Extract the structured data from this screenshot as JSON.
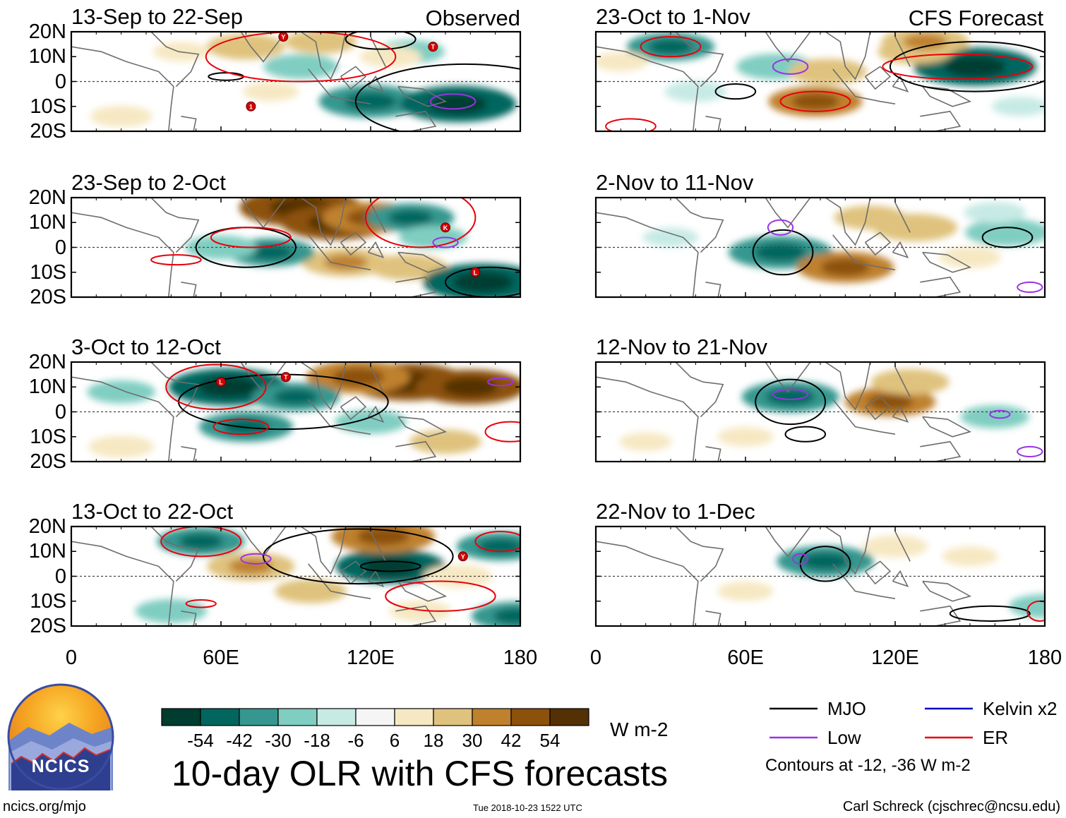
{
  "chart_data": {
    "type": "heatmap",
    "title": "10-day OLR with CFS forecasts",
    "variable": "OLR anomaly",
    "units": "W m-2",
    "columns": [
      {
        "label": "Observed"
      },
      {
        "label": "CFS Forecast"
      }
    ],
    "xlim": [
      0,
      180
    ],
    "ylim": [
      -20,
      20
    ],
    "x_ticks": [
      {
        "value": 0,
        "label": "0"
      },
      {
        "value": 60,
        "label": "60E"
      },
      {
        "value": 120,
        "label": "120E"
      },
      {
        "value": 180,
        "label": "180"
      }
    ],
    "y_ticks": [
      {
        "value": 20,
        "label": "20N"
      },
      {
        "value": 10,
        "label": "10N"
      },
      {
        "value": 0,
        "label": "0"
      },
      {
        "value": -10,
        "label": "10S"
      },
      {
        "value": -20,
        "label": "20S"
      }
    ],
    "panels": [
      {
        "column": 0,
        "row": 0,
        "period": "13-Sep to 22-Sep",
        "tag": "Observed",
        "anomalies": [
          {
            "lon": 120,
            "lat": -8,
            "value": -40
          },
          {
            "lon": 155,
            "lat": -9,
            "value": -48
          },
          {
            "lon": 92,
            "lat": 6,
            "value": -22
          },
          {
            "lon": 136,
            "lat": 12,
            "value": -18
          },
          {
            "lon": 70,
            "lat": 14,
            "value": 24
          },
          {
            "lon": 100,
            "lat": 16,
            "value": 20
          },
          {
            "lon": 128,
            "lat": 10,
            "value": 14
          },
          {
            "lon": 80,
            "lat": -4,
            "value": 10
          },
          {
            "lon": 20,
            "lat": -14,
            "value": 14
          },
          {
            "lon": 44,
            "lat": 12,
            "value": 10
          }
        ],
        "contours": [
          {
            "type": "MJO",
            "lon": 158,
            "lat": -8,
            "w": 44,
            "h": 15
          },
          {
            "type": "MJO",
            "lon": 124,
            "lat": 17,
            "w": 14,
            "h": 4
          },
          {
            "type": "MJO",
            "lon": 62,
            "lat": 2,
            "w": 7,
            "h": 1.5
          },
          {
            "type": "ER",
            "lon": 92,
            "lat": 10,
            "w": 38,
            "h": 10
          },
          {
            "type": "Low",
            "lon": 153,
            "lat": -8,
            "w": 9,
            "h": 3
          }
        ],
        "storms": [
          {
            "label": "Y",
            "lon": 85,
            "lat": 18
          },
          {
            "label": "T",
            "lon": 145,
            "lat": 14
          },
          {
            "label": "1",
            "lon": 72,
            "lat": -10
          }
        ]
      },
      {
        "column": 0,
        "row": 1,
        "period": "23-Sep to 2-Oct",
        "tag": "",
        "anomalies": [
          {
            "lon": 92,
            "lat": 16,
            "value": 52
          },
          {
            "lon": 106,
            "lat": 10,
            "value": 44
          },
          {
            "lon": 120,
            "lat": 12,
            "value": 36
          },
          {
            "lon": 110,
            "lat": -6,
            "value": 30
          },
          {
            "lon": 135,
            "lat": -8,
            "value": 24
          },
          {
            "lon": 165,
            "lat": -14,
            "value": -50
          },
          {
            "lon": 136,
            "lat": 12,
            "value": -30
          },
          {
            "lon": 80,
            "lat": -2,
            "value": -30
          },
          {
            "lon": 60,
            "lat": 0,
            "value": -20
          },
          {
            "lon": 145,
            "lat": 4,
            "value": -18
          }
        ],
        "contours": [
          {
            "type": "MJO",
            "lon": 70,
            "lat": 0,
            "w": 20,
            "h": 8
          },
          {
            "type": "MJO",
            "lon": 168,
            "lat": -14,
            "w": 18,
            "h": 6
          },
          {
            "type": "ER",
            "lon": 140,
            "lat": 12,
            "w": 22,
            "h": 12
          },
          {
            "type": "ER",
            "lon": 72,
            "lat": 4,
            "w": 16,
            "h": 4
          },
          {
            "type": "ER",
            "lon": 42,
            "lat": -5,
            "w": 10,
            "h": 2
          },
          {
            "type": "Low",
            "lon": 150,
            "lat": 2,
            "w": 5,
            "h": 2
          }
        ],
        "storms": [
          {
            "label": "K",
            "lon": 150,
            "lat": 8
          },
          {
            "label": "L",
            "lon": 162,
            "lat": -10
          }
        ]
      },
      {
        "column": 0,
        "row": 2,
        "period": "3-Oct to 12-Oct",
        "tag": "",
        "anomalies": [
          {
            "lon": 135,
            "lat": 12,
            "value": 50
          },
          {
            "lon": 160,
            "lat": 10,
            "value": 44
          },
          {
            "lon": 115,
            "lat": 14,
            "value": 40
          },
          {
            "lon": 63,
            "lat": 10,
            "value": -50
          },
          {
            "lon": 90,
            "lat": 6,
            "value": -30
          },
          {
            "lon": 70,
            "lat": -6,
            "value": -34
          },
          {
            "lon": 20,
            "lat": 8,
            "value": -18
          },
          {
            "lon": 150,
            "lat": -12,
            "value": 20
          },
          {
            "lon": 20,
            "lat": -14,
            "value": 16
          },
          {
            "lon": 120,
            "lat": -4,
            "value": -20
          }
        ],
        "contours": [
          {
            "type": "MJO",
            "lon": 85,
            "lat": 4,
            "w": 42,
            "h": 11
          },
          {
            "type": "ER",
            "lon": 58,
            "lat": 10,
            "w": 20,
            "h": 9
          },
          {
            "type": "ER",
            "lon": 68,
            "lat": -6,
            "w": 11,
            "h": 3
          },
          {
            "type": "ER",
            "lon": 176,
            "lat": -8,
            "w": 10,
            "h": 4
          },
          {
            "type": "Low",
            "lon": 172,
            "lat": 12,
            "w": 5,
            "h": 1.5
          }
        ],
        "storms": [
          {
            "label": "L",
            "lon": 60,
            "lat": 12
          },
          {
            "label": "T",
            "lon": 86,
            "lat": 14
          }
        ]
      },
      {
        "column": 0,
        "row": 3,
        "period": "13-Oct to 22-Oct",
        "tag": "",
        "anomalies": [
          {
            "lon": 128,
            "lat": 4,
            "value": -44
          },
          {
            "lon": 52,
            "lat": 14,
            "value": -30
          },
          {
            "lon": 172,
            "lat": 12,
            "value": -30
          },
          {
            "lon": 178,
            "lat": -16,
            "value": -30
          },
          {
            "lon": 125,
            "lat": 16,
            "value": 40
          },
          {
            "lon": 72,
            "lat": 4,
            "value": 30
          },
          {
            "lon": 155,
            "lat": 0,
            "value": 18
          },
          {
            "lon": 96,
            "lat": -6,
            "value": 20
          },
          {
            "lon": 40,
            "lat": -14,
            "value": -20
          },
          {
            "lon": 140,
            "lat": -14,
            "value": 14
          }
        ],
        "contours": [
          {
            "type": "MJO",
            "lon": 115,
            "lat": 8,
            "w": 38,
            "h": 11
          },
          {
            "type": "MJO",
            "lon": 128,
            "lat": 4,
            "w": 12,
            "h": 2
          },
          {
            "type": "ER",
            "lon": 52,
            "lat": 14,
            "w": 16,
            "h": 6
          },
          {
            "type": "ER",
            "lon": 148,
            "lat": -8,
            "w": 22,
            "h": 6
          },
          {
            "type": "ER",
            "lon": 172,
            "lat": 14,
            "w": 10,
            "h": 4
          },
          {
            "type": "ER",
            "lon": 52,
            "lat": -11,
            "w": 6,
            "h": 1.5
          },
          {
            "type": "Low",
            "lon": 74,
            "lat": 7,
            "w": 6,
            "h": 2
          }
        ],
        "storms": [
          {
            "label": "Y",
            "lon": 157,
            "lat": 8
          }
        ]
      },
      {
        "column": 1,
        "row": 0,
        "period": "23-Oct to 1-Nov",
        "tag": "CFS Forecast",
        "anomalies": [
          {
            "lon": 152,
            "lat": 6,
            "value": -52
          },
          {
            "lon": 30,
            "lat": 14,
            "value": -30
          },
          {
            "lon": 72,
            "lat": 6,
            "value": -24
          },
          {
            "lon": 40,
            "lat": -4,
            "value": -14
          },
          {
            "lon": 88,
            "lat": -8,
            "value": 34
          },
          {
            "lon": 93,
            "lat": 4,
            "value": 24
          },
          {
            "lon": 128,
            "lat": 12,
            "value": 22
          },
          {
            "lon": 132,
            "lat": 16,
            "value": 30
          },
          {
            "lon": 10,
            "lat": 8,
            "value": 10
          },
          {
            "lon": 170,
            "lat": -10,
            "value": -10
          }
        ],
        "contours": [
          {
            "type": "MJO",
            "lon": 152,
            "lat": 6,
            "w": 34,
            "h": 10
          },
          {
            "type": "MJO",
            "lon": 56,
            "lat": -4,
            "w": 8,
            "h": 3
          },
          {
            "type": "ER",
            "lon": 30,
            "lat": 14,
            "w": 12,
            "h": 4
          },
          {
            "type": "ER",
            "lon": 88,
            "lat": -8,
            "w": 14,
            "h": 4
          },
          {
            "type": "ER",
            "lon": 145,
            "lat": 6,
            "w": 30,
            "h": 5
          },
          {
            "type": "ER",
            "lon": 14,
            "lat": -18,
            "w": 10,
            "h": 3
          },
          {
            "type": "Low",
            "lon": 78,
            "lat": 6,
            "w": 7,
            "h": 3
          }
        ],
        "storms": []
      },
      {
        "column": 1,
        "row": 1,
        "period": "2-Nov to 11-Nov",
        "tag": "",
        "anomalies": [
          {
            "lon": 74,
            "lat": -2,
            "value": -40
          },
          {
            "lon": 165,
            "lat": 6,
            "value": -28
          },
          {
            "lon": 100,
            "lat": -8,
            "value": 36
          },
          {
            "lon": 128,
            "lat": 8,
            "value": 28
          },
          {
            "lon": 110,
            "lat": 12,
            "value": 20
          },
          {
            "lon": 150,
            "lat": -4,
            "value": 14
          },
          {
            "lon": 160,
            "lat": 14,
            "value": -14
          },
          {
            "lon": 30,
            "lat": 4,
            "value": -10
          }
        ],
        "contours": [
          {
            "type": "MJO",
            "lon": 75,
            "lat": -2,
            "w": 12,
            "h": 9
          },
          {
            "type": "MJO",
            "lon": 165,
            "lat": 4,
            "w": 10,
            "h": 4
          },
          {
            "type": "Low",
            "lon": 74,
            "lat": 8,
            "w": 5,
            "h": 3
          },
          {
            "type": "Low",
            "lon": 174,
            "lat": -16,
            "w": 5,
            "h": 2
          }
        ],
        "storms": []
      },
      {
        "column": 1,
        "row": 2,
        "period": "12-Nov to 21-Nov",
        "tag": "",
        "anomalies": [
          {
            "lon": 78,
            "lat": 6,
            "value": -36
          },
          {
            "lon": 118,
            "lat": 4,
            "value": 32
          },
          {
            "lon": 126,
            "lat": 12,
            "value": 24
          },
          {
            "lon": 160,
            "lat": -2,
            "value": -18
          },
          {
            "lon": 60,
            "lat": -10,
            "value": 10
          },
          {
            "lon": 20,
            "lat": -12,
            "value": 8
          }
        ],
        "contours": [
          {
            "type": "MJO",
            "lon": 78,
            "lat": 4,
            "w": 14,
            "h": 9
          },
          {
            "type": "MJO",
            "lon": 84,
            "lat": -9,
            "w": 8,
            "h": 3
          },
          {
            "type": "Low",
            "lon": 78,
            "lat": 7,
            "w": 7,
            "h": 2
          },
          {
            "type": "Low",
            "lon": 162,
            "lat": -1,
            "w": 4,
            "h": 1.5
          },
          {
            "type": "Low",
            "lon": 174,
            "lat": -16,
            "w": 5,
            "h": 2
          }
        ],
        "storms": []
      },
      {
        "column": 1,
        "row": 3,
        "period": "22-Nov to 1-Dec",
        "tag": "",
        "anomalies": [
          {
            "lon": 92,
            "lat": 6,
            "value": -36
          },
          {
            "lon": 180,
            "lat": -12,
            "value": -20
          },
          {
            "lon": 120,
            "lat": 12,
            "value": 16
          },
          {
            "lon": 60,
            "lat": -6,
            "value": 10
          },
          {
            "lon": 150,
            "lat": 8,
            "value": 10
          }
        ],
        "contours": [
          {
            "type": "MJO",
            "lon": 92,
            "lat": 5,
            "w": 10,
            "h": 7
          },
          {
            "type": "MJO",
            "lon": 158,
            "lat": -15,
            "w": 16,
            "h": 3
          },
          {
            "type": "ER",
            "lon": 178,
            "lat": -14,
            "w": 5,
            "h": 4
          },
          {
            "type": "Low",
            "lon": 82,
            "lat": 7,
            "w": 3,
            "h": 2
          }
        ],
        "storms": []
      }
    ],
    "colorbar": {
      "ticks": [
        -54,
        -42,
        -30,
        -18,
        -6,
        6,
        18,
        30,
        42,
        54
      ],
      "tick_labels": [
        "-54",
        "-42",
        "-30",
        "-18",
        "-6",
        "6",
        "18",
        "30",
        "42",
        "54"
      ],
      "colors": [
        "#003c30",
        "#01665e",
        "#35978f",
        "#80cdc1",
        "#c7eae5",
        "#f5f5f5",
        "#f6e8c3",
        "#dfc27d",
        "#bf812d",
        "#8c510a",
        "#543005"
      ],
      "units": "W m-2"
    },
    "legend": [
      {
        "label": "MJO",
        "color": "#000000"
      },
      {
        "label": "Kelvin x2",
        "color": "#0000cc"
      },
      {
        "label": "Low",
        "color": "#9a32e6"
      },
      {
        "label": "ER",
        "color": "#e8000b"
      }
    ],
    "contour_note": "Contours at -12, -36 W m-2"
  },
  "logo": {
    "text": "NCICS"
  },
  "footer": {
    "url": "ncics.org/mjo",
    "timestamp": "Tue 2018-10-23 1522 UTC",
    "credit": "Carl Schreck (cjschrec@ncsu.edu)"
  }
}
